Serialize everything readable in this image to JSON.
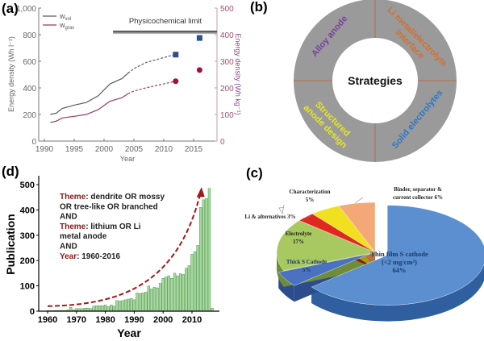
{
  "panels": {
    "a": "(a)",
    "b": "(b)",
    "c": "(c)",
    "d": "(d)"
  },
  "chart_data": [
    {
      "id": "a",
      "type": "line",
      "xlabel": "Year",
      "ylabel": "Energy density (Wh l⁻¹)",
      "y2label": "Energy density (Wh kg⁻¹)",
      "xlim": [
        1989,
        2019
      ],
      "ylim": [
        0,
        1000
      ],
      "y2lim": [
        0,
        500
      ],
      "xticks": [
        "1990",
        "1995",
        "2000",
        "2005",
        "2010",
        "2015"
      ],
      "yticks": [
        "0",
        "200",
        "400",
        "600",
        "800",
        "1,000"
      ],
      "y2ticks": [
        "0",
        "100",
        "200",
        "300",
        "400",
        "500"
      ],
      "annotation": "Physicochemical limit",
      "limit_range_wh_l": [
        805,
        830
      ],
      "limit_start_year": 2001.5,
      "legend": [
        "w_vol",
        "w_grav"
      ],
      "legend_main": [
        "w",
        "w"
      ],
      "legend_sub": [
        "vol",
        "grav"
      ],
      "series": [
        {
          "name": "w_vol",
          "axis": "left",
          "color": "#5a5a6e",
          "x": [
            1991,
            1992,
            1993,
            1995,
            1997,
            1999,
            2001,
            2003,
            2004
          ],
          "y": [
            200,
            210,
            245,
            270,
            290,
            340,
            430,
            470,
            510
          ],
          "x_dashed": [
            2004,
            2005,
            2007,
            2009,
            2011,
            2012
          ],
          "y_dashed": [
            510,
            545,
            590,
            615,
            640,
            650
          ],
          "markers": [
            {
              "x": 2012,
              "y": 650
            },
            {
              "x": 2016,
              "y": 775
            }
          ],
          "marker_color": "#2e4f8f"
        },
        {
          "name": "w_grav",
          "axis": "right",
          "color": "#9b3b5a",
          "x": [
            1991,
            1992,
            1993,
            1995,
            1997,
            1999,
            2001,
            2003,
            2004
          ],
          "y": [
            70,
            75,
            87,
            93,
            100,
            118,
            150,
            163,
            178
          ],
          "x_dashed": [
            2004,
            2005,
            2007,
            2009,
            2011,
            2012
          ],
          "y_dashed": [
            178,
            188,
            200,
            210,
            220,
            225
          ],
          "markers": [
            {
              "x": 2012,
              "y": 225
            },
            {
              "x": 2016,
              "y": 267
            }
          ],
          "marker_color": "#a01040"
        }
      ]
    },
    {
      "id": "b",
      "type": "pie",
      "center": "Strategies",
      "segments": [
        {
          "label_lines": [
            "Alloy anode"
          ],
          "color": "#7b3fa0"
        },
        {
          "label_lines": [
            "Li metal/electrolyte",
            "interface"
          ],
          "color": "#d07030"
        },
        {
          "label_lines": [
            "Solid electrolytes"
          ],
          "color": "#2a78c8"
        },
        {
          "label_lines": [
            "Structured",
            "anode design"
          ],
          "color": "#e8e820"
        }
      ],
      "values": [
        25,
        25,
        25,
        25
      ],
      "ring_color": "#9a9a9a",
      "divider_color": "#b07048"
    },
    {
      "id": "c",
      "type": "pie",
      "slices": [
        {
          "label_lines": [
            "Thin film S cathode",
            "(<2 mg/cm²)",
            "64%"
          ],
          "value": 64,
          "color": "#5b8fd0",
          "dark": "#2f5f9e"
        },
        {
          "label_lines": [
            "Thick S Cathode",
            "5%"
          ],
          "value": 5,
          "color": "#4a72c0",
          "dark": "#2c4c8c"
        },
        {
          "label_lines": [
            "Electrolyte",
            "17%"
          ],
          "value": 17,
          "color": "#a8c860",
          "dark": "#6f8c38"
        },
        {
          "label_lines": [
            "Li & alternatives 3%"
          ],
          "value": 3,
          "color": "#e02820",
          "dark": "#901810"
        },
        {
          "label_lines": [
            "Characterization",
            "5%"
          ],
          "value": 5,
          "color": "#f0e020",
          "dark": "#a89c10"
        },
        {
          "label_lines": [
            "Binder, separator &",
            "current collector 6%"
          ],
          "value": 6,
          "color": "#f4a878",
          "dark": "#b87040"
        }
      ]
    },
    {
      "id": "d",
      "type": "bar",
      "xlabel": "Year",
      "ylabel": "Publication",
      "xlim": [
        1957,
        2019
      ],
      "ylim": [
        0,
        530
      ],
      "xticks": [
        "1960",
        "1970",
        "1980",
        "1990",
        "2000",
        "2010"
      ],
      "yticks": [
        "0",
        "100",
        "200",
        "300",
        "400",
        "500"
      ],
      "x": [
        1960,
        1961,
        1962,
        1963,
        1964,
        1965,
        1966,
        1967,
        1968,
        1969,
        1970,
        1971,
        1972,
        1973,
        1974,
        1975,
        1976,
        1977,
        1978,
        1979,
        1980,
        1981,
        1982,
        1983,
        1984,
        1985,
        1986,
        1987,
        1988,
        1989,
        1990,
        1991,
        1992,
        1993,
        1994,
        1995,
        1996,
        1997,
        1998,
        1999,
        2000,
        2001,
        2002,
        2003,
        2004,
        2005,
        2006,
        2007,
        2008,
        2009,
        2010,
        2011,
        2012,
        2013,
        2014,
        2015,
        2016,
        2017
      ],
      "values": [
        2,
        2,
        2,
        3,
        3,
        3,
        3,
        5,
        15,
        5,
        10,
        10,
        10,
        12,
        12,
        10,
        20,
        22,
        22,
        22,
        25,
        18,
        25,
        20,
        42,
        40,
        42,
        45,
        48,
        50,
        45,
        72,
        70,
        72,
        75,
        100,
        88,
        95,
        92,
        110,
        130,
        135,
        140,
        130,
        150,
        140,
        148,
        145,
        170,
        180,
        225,
        235,
        260,
        410,
        440,
        445,
        485,
        12
      ],
      "bar_color": "#a8d8a0",
      "bar_edge": "#3a8a3a",
      "trend_color": "#a01818",
      "annotation": [
        {
          "key": "Theme",
          "text": ": dendrite OR mossy"
        },
        {
          "key": "",
          "text": "OR tree-like OR branched"
        },
        {
          "key": "",
          "text": "AND"
        },
        {
          "key": "Theme",
          "text": ":  lithium OR Li"
        },
        {
          "key": "",
          "text": "metal anode"
        },
        {
          "key": "",
          "text": "AND"
        },
        {
          "key": "Year",
          "text": ": 1960-2016"
        }
      ]
    }
  ]
}
